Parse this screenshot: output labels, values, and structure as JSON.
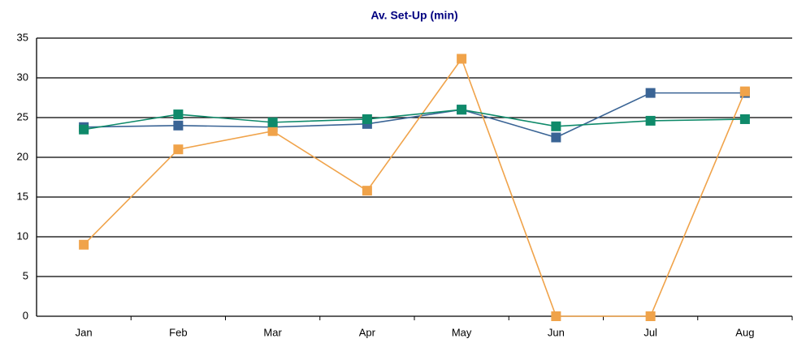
{
  "chart_data": {
    "type": "line",
    "title": "Av. Set-Up (min)",
    "categories": [
      "Jan",
      "Feb",
      "Mar",
      "Apr",
      "May",
      "Jun",
      "Jul",
      "Aug"
    ],
    "series": [
      {
        "color": "#3a6495",
        "values": [
          23.8,
          24,
          23.8,
          24.2,
          26,
          22.5,
          28.1,
          28.1
        ]
      },
      {
        "color": "#f0a34a",
        "values": [
          9,
          21,
          23.3,
          15.8,
          32.4,
          0,
          0,
          28.3
        ]
      },
      {
        "color": "#0f8a6a",
        "values": [
          23.5,
          25.4,
          24.4,
          24.8,
          26,
          23.9,
          24.6,
          24.8
        ]
      }
    ],
    "ylim": [
      0,
      35
    ],
    "yticks": [
      0,
      5,
      10,
      15,
      20,
      25,
      30,
      35
    ],
    "grid": true
  }
}
